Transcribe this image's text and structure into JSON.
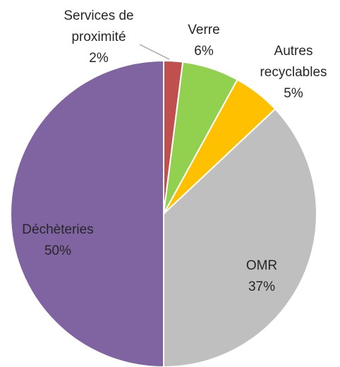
{
  "chart_data": {
    "type": "pie",
    "categories": [
      "Services de proximité",
      "Verre",
      "Autres recyclables",
      "OMR",
      "Déchèteries"
    ],
    "values": [
      2,
      6,
      5,
      37,
      50
    ],
    "value_labels": [
      "2%",
      "6%",
      "5%",
      "37%",
      "50%"
    ],
    "colors": [
      "#c0504d",
      "#92d050",
      "#ffc000",
      "#bfbfbf",
      "#8064a2"
    ]
  }
}
